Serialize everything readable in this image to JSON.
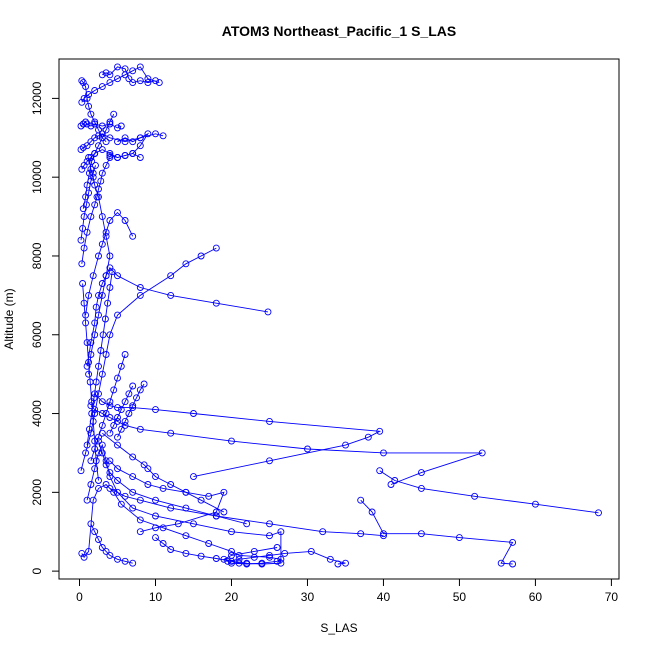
{
  "chart_data": {
    "type": "line",
    "title": "ATOM3 Northeast_Pacific_1 S_LAS",
    "xlabel": "S_LAS",
    "ylabel": "Altitude (m)",
    "xlim": [
      -2.7,
      71
    ],
    "ylim": [
      -200,
      13000
    ],
    "x_ticks": [
      0,
      10,
      20,
      30,
      40,
      50,
      60,
      70
    ],
    "y_ticks": [
      0,
      2000,
      4000,
      6000,
      8000,
      10000,
      12000
    ],
    "grid": false,
    "legend": "none",
    "series_color": "#0000ff",
    "series": [
      {
        "x": [
          0.3,
          0.6,
          1.2,
          1.8,
          2.5,
          3.5,
          4.5,
          5.5,
          8,
          11,
          14,
          17,
          20,
          21,
          25,
          26.5,
          26,
          24,
          22,
          20,
          19.5,
          21,
          23,
          25,
          27,
          30.5,
          33,
          35,
          34
        ],
        "y": [
          450,
          350,
          500,
          1800,
          2100,
          2200,
          2000,
          1700,
          1300,
          1100,
          900,
          700,
          500,
          400,
          350,
          300,
          250,
          200,
          180,
          200,
          250,
          300,
          350,
          400,
          450,
          500,
          300,
          200,
          180
        ]
      },
      {
        "x": [
          1,
          1.5,
          2,
          2.5,
          3,
          3.5,
          4,
          5,
          7,
          10,
          15,
          20,
          25,
          26.5,
          26.5,
          24,
          21,
          19,
          20,
          23,
          26
        ],
        "y": [
          1800,
          2200,
          2600,
          3000,
          3200,
          2800,
          2400,
          2000,
          1600,
          1400,
          1200,
          1000,
          900,
          1000,
          200,
          180,
          200,
          300,
          400,
          500,
          600
        ]
      },
      {
        "x": [
          0.2,
          0.8,
          1.5,
          2,
          2.5,
          3,
          3.5,
          4,
          5,
          8,
          12,
          14,
          16,
          18
        ],
        "y": [
          2550,
          3000,
          3500,
          4000,
          4500,
          5000,
          5500,
          6000,
          6500,
          7000,
          7500,
          7800,
          8000,
          8200
        ]
      },
      {
        "x": [
          4,
          5,
          7,
          9,
          11,
          14,
          17,
          19,
          18,
          13,
          10,
          8
        ],
        "y": [
          2800,
          2600,
          2400,
          2200,
          2100,
          2000,
          1900,
          2000,
          1500,
          1200,
          1100,
          1000
        ]
      },
      {
        "x": [
          3,
          5,
          7,
          8.5,
          9,
          10,
          12,
          14,
          16,
          19
        ],
        "y": [
          3500,
          3200,
          2900,
          2700,
          2600,
          2400,
          2200,
          2000,
          1800,
          1500
        ]
      },
      {
        "x": [
          1.5,
          2,
          3,
          4,
          5,
          6,
          8,
          12,
          20,
          30,
          40,
          53,
          45,
          41
        ],
        "y": [
          4200,
          4100,
          4000,
          3900,
          3800,
          3700,
          3600,
          3500,
          3300,
          3100,
          3000,
          3000,
          2500,
          2200
        ]
      },
      {
        "x": [
          2,
          3,
          4,
          5,
          7,
          10,
          15,
          25,
          39.5,
          38,
          35,
          25,
          15
        ],
        "y": [
          4500,
          4300,
          4200,
          4150,
          4150,
          4100,
          4000,
          3800,
          3550,
          3400,
          3200,
          2800,
          2400
        ]
      },
      {
        "x": [
          2.5,
          3,
          3.5,
          4,
          5,
          7,
          10,
          14,
          18,
          22
        ],
        "y": [
          3300,
          3000,
          2700,
          2500,
          2300,
          2000,
          1800,
          1600,
          1400,
          1200
        ]
      },
      {
        "x": [
          39.5,
          41.5,
          45,
          52,
          60,
          68.3
        ],
        "y": [
          2550,
          2300,
          2100,
          1900,
          1700,
          1480
        ]
      },
      {
        "x": [
          37,
          38.5,
          40,
          45,
          50,
          57,
          55.5,
          57
        ],
        "y": [
          1800,
          1500,
          950,
          950,
          850,
          730,
          200,
          180
        ]
      },
      {
        "x": [
          4,
          6,
          8,
          12,
          18,
          25,
          32,
          37,
          40
        ],
        "y": [
          2100,
          1900,
          1800,
          1600,
          1400,
          1200,
          1000,
          950,
          900
        ]
      },
      {
        "x": [
          1.2,
          1.5,
          2,
          2.5,
          3,
          3.5,
          4,
          3.5,
          3,
          2.5,
          2,
          1.8,
          1.5,
          1.2
        ],
        "y": [
          5000,
          5500,
          6000,
          6500,
          7000,
          7500,
          8000,
          8500,
          9000,
          9500,
          9800,
          10000,
          10200,
          10500
        ]
      },
      {
        "x": [
          1,
          1.5,
          2,
          2.2,
          2.5,
          3,
          3.5,
          4,
          5,
          8,
          12,
          18,
          24.8
        ],
        "y": [
          5200,
          5800,
          6300,
          6700,
          7000,
          7300,
          7500,
          7700,
          7500,
          7200,
          7000,
          6800,
          6580
        ]
      },
      {
        "x": [
          0.8,
          1.2,
          1.8,
          2.5,
          3,
          3.5,
          4,
          5,
          6,
          7
        ],
        "y": [
          6500,
          7000,
          7500,
          8000,
          8300,
          8600,
          8900,
          9100,
          8900,
          8500
        ]
      },
      {
        "x": [
          0.3,
          0.6,
          1,
          1.5,
          2,
          2.3,
          2.5,
          2.8,
          3,
          3.5,
          4
        ],
        "y": [
          7800,
          8200,
          8600,
          9000,
          9300,
          9500,
          9700,
          9900,
          10100,
          10300,
          10500
        ]
      },
      {
        "x": [
          0.2,
          0.5,
          1,
          1.5,
          2,
          2.5,
          3,
          4,
          6,
          8,
          10,
          11
        ],
        "y": [
          10700,
          10750,
          10800,
          10900,
          11000,
          11050,
          11100,
          11000,
          10900,
          11000,
          11100,
          11050
        ]
      },
      {
        "x": [
          0.3,
          0.6,
          1,
          1.5,
          2,
          3,
          4,
          5,
          6,
          7,
          8
        ],
        "y": [
          10200,
          10300,
          10400,
          10500,
          10600,
          10700,
          10600,
          10500,
          10550,
          10600,
          10500
        ]
      },
      {
        "x": [
          0.2,
          0.5,
          0.8,
          1,
          1.5,
          2,
          3,
          4,
          5,
          5.5
        ],
        "y": [
          11300,
          11350,
          11400,
          11350,
          11300,
          11350,
          11300,
          11350,
          11250,
          11300
        ]
      },
      {
        "x": [
          0.3,
          0.6,
          1.2,
          2,
          3,
          4,
          5,
          6,
          7,
          8,
          9,
          10.5
        ],
        "y": [
          11900,
          12000,
          12100,
          12200,
          12300,
          12400,
          12500,
          12600,
          12700,
          12800,
          12500,
          12400
        ]
      },
      {
        "x": [
          3,
          3.5,
          4,
          5,
          6,
          6.5,
          7,
          8,
          9,
          10
        ],
        "y": [
          12600,
          12650,
          12600,
          12800,
          12750,
          12500,
          12400,
          12450,
          12400,
          12450
        ]
      },
      {
        "x": [
          0.3,
          0.5,
          0.8,
          1,
          1.2,
          1.5,
          2,
          2.5,
          3,
          3.5
        ],
        "y": [
          12450,
          12400,
          12300,
          12000,
          11800,
          11600,
          11400,
          11200,
          11000,
          10900
        ]
      },
      {
        "x": [
          0.5,
          0.8,
          1,
          1.3,
          1.6,
          2,
          2.5,
          3,
          3.5,
          4,
          4.5
        ],
        "y": [
          9200,
          9500,
          9800,
          10100,
          10400,
          10600,
          10800,
          11000,
          11200,
          11400,
          11600
        ]
      },
      {
        "x": [
          5,
          6,
          7,
          8,
          9,
          8,
          7,
          6,
          5,
          4
        ],
        "y": [
          10900,
          11000,
          10900,
          11000,
          11100,
          10800,
          10600,
          10550,
          10500,
          10550
        ]
      },
      {
        "x": [
          1.5,
          2,
          2.5,
          3,
          3.5,
          4,
          5,
          6,
          7
        ],
        "y": [
          1200,
          1000,
          800,
          600,
          500,
          400,
          300,
          250,
          200
        ]
      },
      {
        "x": [
          10,
          11,
          12,
          14,
          16,
          18,
          20,
          22
        ],
        "y": [
          850,
          700,
          550,
          450,
          380,
          320,
          250,
          200
        ]
      },
      {
        "x": [
          1,
          1.3,
          1.6,
          1.9,
          2.2,
          2.5,
          2.8,
          3.1,
          3.4,
          3.7,
          4,
          4.3
        ],
        "y": [
          3200,
          3600,
          4000,
          4400,
          4800,
          5200,
          5600,
          6000,
          6400,
          6800,
          7200,
          7600
        ]
      },
      {
        "x": [
          2.5,
          2.2,
          2,
          1.8,
          1.6,
          1.4,
          1.2,
          1,
          0.8,
          0.6,
          0.4
        ],
        "y": [
          2300,
          2800,
          3300,
          3800,
          4300,
          4800,
          5300,
          5800,
          6300,
          6800,
          7300
        ]
      },
      {
        "x": [
          6,
          5.5,
          5,
          4.5,
          4,
          3.5,
          3,
          2.5,
          2,
          1.5
        ],
        "y": [
          5500,
          5200,
          4900,
          4600,
          4300,
          4000,
          3700,
          3400,
          3100,
          2800
        ]
      },
      {
        "x": [
          7,
          6.5,
          6,
          5.5,
          5,
          4.5,
          4
        ],
        "y": [
          4700,
          4500,
          4300,
          4100,
          3900,
          3700,
          3500
        ]
      },
      {
        "x": [
          8.5,
          8,
          7.5,
          7,
          6.5,
          6,
          5.5,
          5
        ],
        "y": [
          4750,
          4600,
          4400,
          4200,
          4000,
          3800,
          3600,
          3400
        ]
      },
      {
        "x": [
          0.2,
          0.4,
          0.6,
          0.9,
          1.2,
          1.5,
          1.8,
          2.1
        ],
        "y": [
          8400,
          8700,
          9000,
          9300,
          9600,
          9900,
          10100,
          10300
        ]
      }
    ]
  }
}
